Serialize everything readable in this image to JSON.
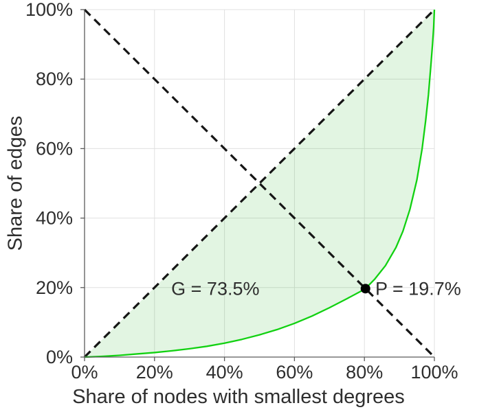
{
  "chart_data": {
    "type": "line",
    "title": "",
    "xlabel": "Share of nodes with smallest degrees",
    "ylabel": "Share of edges",
    "xlim": [
      0,
      1
    ],
    "ylim": [
      0,
      1
    ],
    "grid": true,
    "legend": "none",
    "tick_values": [
      0,
      0.2,
      0.4,
      0.6,
      0.8,
      1.0
    ],
    "x_tick_labels": [
      "0%",
      "20%",
      "40%",
      "60%",
      "80%",
      "100%"
    ],
    "y_tick_labels": [
      "0%",
      "20%",
      "40%",
      "60%",
      "80%",
      "100%"
    ],
    "series": [
      {
        "name": "lorenz_curve",
        "style": "solid",
        "color": "#11d111",
        "width": 2.3,
        "points": [
          [
            0,
            0
          ],
          [
            0.05,
            0.002
          ],
          [
            0.1,
            0.005
          ],
          [
            0.15,
            0.009
          ],
          [
            0.2,
            0.013
          ],
          [
            0.25,
            0.018
          ],
          [
            0.3,
            0.024
          ],
          [
            0.35,
            0.031
          ],
          [
            0.4,
            0.04
          ],
          [
            0.45,
            0.051
          ],
          [
            0.5,
            0.064
          ],
          [
            0.55,
            0.079
          ],
          [
            0.6,
            0.097
          ],
          [
            0.65,
            0.118
          ],
          [
            0.7,
            0.142
          ],
          [
            0.75,
            0.168
          ],
          [
            0.8,
            0.195
          ],
          [
            0.803,
            0.197
          ],
          [
            0.83,
            0.225
          ],
          [
            0.86,
            0.263
          ],
          [
            0.89,
            0.315
          ],
          [
            0.91,
            0.362
          ],
          [
            0.93,
            0.425
          ],
          [
            0.95,
            0.51
          ],
          [
            0.965,
            0.6
          ],
          [
            0.975,
            0.68
          ],
          [
            0.983,
            0.755
          ],
          [
            0.99,
            0.84
          ],
          [
            0.995,
            0.905
          ],
          [
            0.998,
            0.95
          ],
          [
            1,
            1
          ]
        ]
      },
      {
        "name": "equality_diagonal",
        "style": "dashed",
        "color": "#161616",
        "width": 3.2,
        "points": [
          [
            0,
            0
          ],
          [
            1,
            1
          ]
        ]
      },
      {
        "name": "anti_diagonal",
        "style": "dashed",
        "color": "#161616",
        "width": 3.2,
        "points": [
          [
            0,
            1
          ],
          [
            1,
            0
          ]
        ]
      }
    ],
    "fill_between": {
      "between": [
        "equality_diagonal",
        "lorenz_curve"
      ],
      "color": "rgba(0,170,0,0.115)"
    },
    "point_marker": {
      "x": 0.803,
      "y": 0.197,
      "color": "#000000",
      "radius": 7
    },
    "annotations": [
      {
        "id": "gini_coefficient",
        "text": "G = 73.5%",
        "x": 0.5,
        "y": 0.197,
        "anchor": "end"
      },
      {
        "id": "pareto_point",
        "text": "P = 19.7%",
        "x": 0.831,
        "y": 0.197,
        "anchor": "start"
      }
    ]
  },
  "style": {
    "background": "#ffffff",
    "text_color": "#2e2e2e",
    "axis_color": "#5a5a5a",
    "grid_color": "#e0e0e0",
    "curve_color": "#11d111",
    "dash_color": "#161616",
    "fill_color": "rgba(0,170,0,0.115)"
  }
}
